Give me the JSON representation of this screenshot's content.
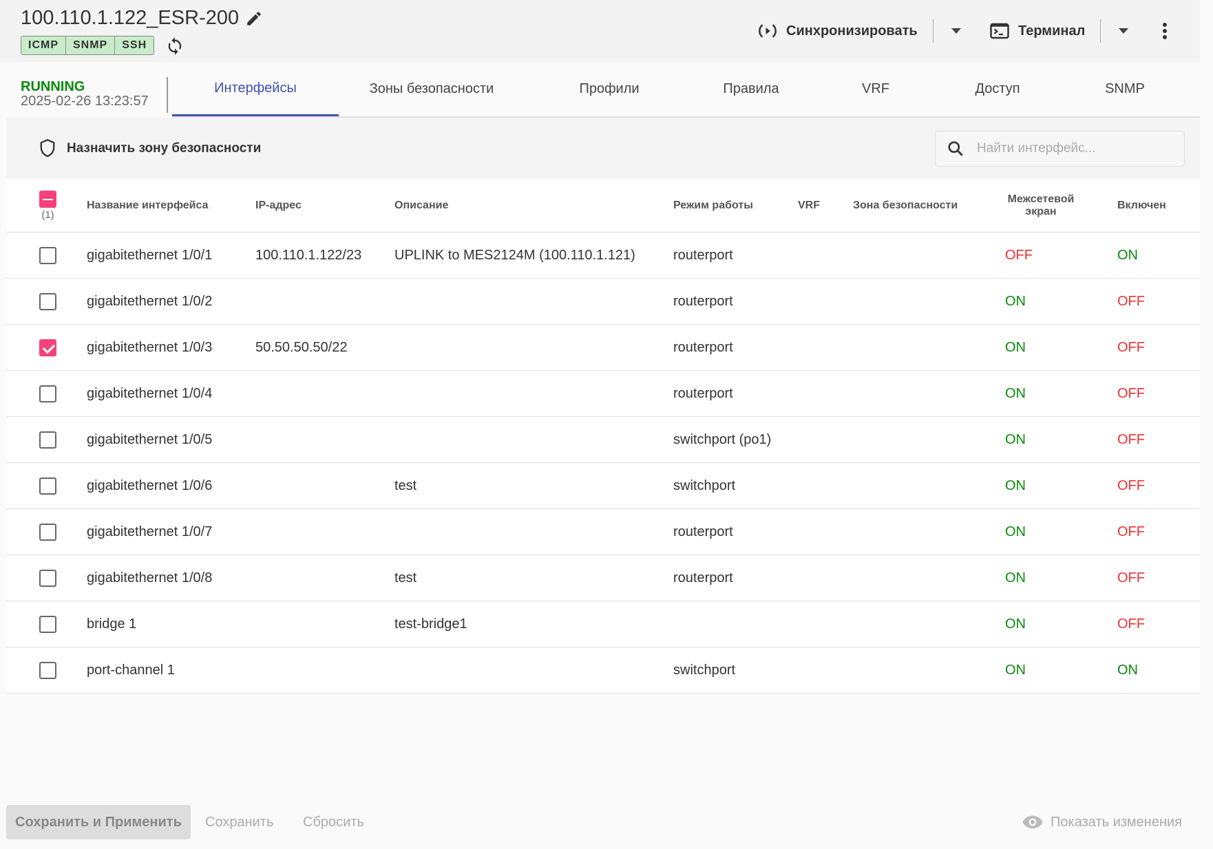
{
  "header": {
    "title": "100.110.1.122_ESR-200",
    "badges": [
      "ICMP",
      "SNMP",
      "SSH"
    ],
    "sync_label": "Синхронизировать",
    "terminal_label": "Терминал"
  },
  "status": {
    "state": "RUNNING",
    "timestamp": "2025-02-26 13:23:57"
  },
  "tabs": [
    "Интерфейсы",
    "Зоны безопасности",
    "Профили",
    "Правила",
    "VRF",
    "Доступ",
    "SNMP"
  ],
  "active_tab": "Интерфейсы",
  "toolbar": {
    "assign_label": "Назначить зону безопасности",
    "search_placeholder": "Найти интерфейс..."
  },
  "table": {
    "selected_count": "(1)",
    "columns": [
      "Название интерфейса",
      "IP-адрес",
      "Описание",
      "Режим работы",
      "VRF",
      "Зона безопасности",
      "Межсетевой экран",
      "Включен"
    ],
    "rows": [
      {
        "checked": false,
        "name": "gigabitethernet 1/0/1",
        "ip": "100.110.1.122/23",
        "desc": "UPLINK to MES2124M (100.110.1.121)",
        "mode": "routerport",
        "vrf": "",
        "zone": "",
        "firewall": "OFF",
        "enabled": "ON"
      },
      {
        "checked": false,
        "name": "gigabitethernet 1/0/2",
        "ip": "",
        "desc": "",
        "mode": "routerport",
        "vrf": "",
        "zone": "",
        "firewall": "ON",
        "enabled": "OFF"
      },
      {
        "checked": true,
        "name": "gigabitethernet 1/0/3",
        "ip": "50.50.50.50/22",
        "desc": "",
        "mode": "routerport",
        "vrf": "",
        "zone": "",
        "firewall": "ON",
        "enabled": "OFF"
      },
      {
        "checked": false,
        "name": "gigabitethernet 1/0/4",
        "ip": "",
        "desc": "",
        "mode": "routerport",
        "vrf": "",
        "zone": "",
        "firewall": "ON",
        "enabled": "OFF"
      },
      {
        "checked": false,
        "name": "gigabitethernet 1/0/5",
        "ip": "",
        "desc": "",
        "mode": "switchport (po1)",
        "vrf": "",
        "zone": "",
        "firewall": "ON",
        "enabled": "OFF"
      },
      {
        "checked": false,
        "name": "gigabitethernet 1/0/6",
        "ip": "",
        "desc": "test",
        "mode": "switchport",
        "vrf": "",
        "zone": "",
        "firewall": "ON",
        "enabled": "OFF"
      },
      {
        "checked": false,
        "name": "gigabitethernet 1/0/7",
        "ip": "",
        "desc": "",
        "mode": "routerport",
        "vrf": "",
        "zone": "",
        "firewall": "ON",
        "enabled": "OFF"
      },
      {
        "checked": false,
        "name": "gigabitethernet 1/0/8",
        "ip": "",
        "desc": "test",
        "mode": "routerport",
        "vrf": "",
        "zone": "",
        "firewall": "ON",
        "enabled": "OFF"
      },
      {
        "checked": false,
        "name": "bridge 1",
        "ip": "",
        "desc": "test-bridge1",
        "mode": "",
        "vrf": "",
        "zone": "",
        "firewall": "ON",
        "enabled": "OFF"
      },
      {
        "checked": false,
        "name": "port-channel 1",
        "ip": "",
        "desc": "",
        "mode": "switchport",
        "vrf": "",
        "zone": "",
        "firewall": "ON",
        "enabled": "ON"
      }
    ]
  },
  "footer": {
    "save_apply": "Сохранить и Применить",
    "save": "Сохранить",
    "reset": "Сбросить",
    "show_changes": "Показать изменения"
  },
  "colors": {
    "accent": "#3f51b5",
    "checkbox": "#f4427a",
    "on": "#0a8a0a",
    "off": "#f03030",
    "running": "#0a8a0a"
  }
}
